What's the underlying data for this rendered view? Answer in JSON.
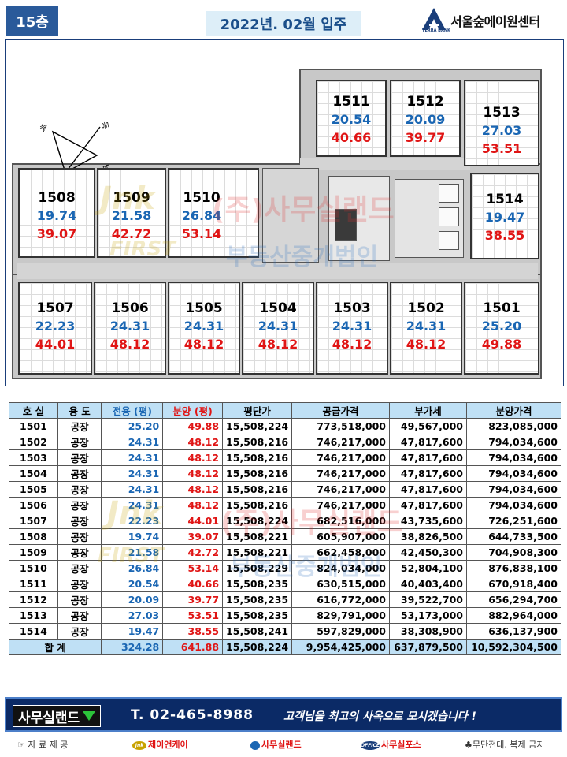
{
  "header": {
    "floor": "15층",
    "move_in": "2022년. 02월 입주",
    "brand_name": "서울숲에이원센터",
    "brand_logo_text": "TERRA BANK"
  },
  "compass": {
    "north": "북",
    "east": "동",
    "south": "남",
    "west": "서"
  },
  "watermarks": {
    "jnk": "Jnk",
    "first": "FIRST",
    "company": "(주)사무실랜드",
    "realty": "부동산중개법인"
  },
  "floor_plan": {
    "units": [
      {
        "unit": "1511",
        "exclusive": "20.54",
        "sale": "40.66"
      },
      {
        "unit": "1512",
        "exclusive": "20.09",
        "sale": "39.77"
      },
      {
        "unit": "1513",
        "exclusive": "27.03",
        "sale": "53.51"
      },
      {
        "unit": "1508",
        "exclusive": "19.74",
        "sale": "39.07"
      },
      {
        "unit": "1509",
        "exclusive": "21.58",
        "sale": "42.72"
      },
      {
        "unit": "1510",
        "exclusive": "26.84",
        "sale": "53.14"
      },
      {
        "unit": "1514",
        "exclusive": "19.47",
        "sale": "38.55"
      },
      {
        "unit": "1507",
        "exclusive": "22.23",
        "sale": "44.01"
      },
      {
        "unit": "1506",
        "exclusive": "24.31",
        "sale": "48.12"
      },
      {
        "unit": "1505",
        "exclusive": "24.31",
        "sale": "48.12"
      },
      {
        "unit": "1504",
        "exclusive": "24.31",
        "sale": "48.12"
      },
      {
        "unit": "1503",
        "exclusive": "24.31",
        "sale": "48.12"
      },
      {
        "unit": "1502",
        "exclusive": "24.31",
        "sale": "48.12"
      },
      {
        "unit": "1501",
        "exclusive": "25.20",
        "sale": "49.88"
      }
    ]
  },
  "table": {
    "headers": [
      "호 실",
      "용 도",
      "전용 (평)",
      "분양 (평)",
      "평단가",
      "공급가격",
      "부가세",
      "분양가격"
    ],
    "rows": [
      [
        "1501",
        "공장",
        "25.20",
        "49.88",
        "15,508,224",
        "773,518,000",
        "49,567,000",
        "823,085,000"
      ],
      [
        "1502",
        "공장",
        "24.31",
        "48.12",
        "15,508,216",
        "746,217,000",
        "47,817,600",
        "794,034,600"
      ],
      [
        "1503",
        "공장",
        "24.31",
        "48.12",
        "15,508,216",
        "746,217,000",
        "47,817,600",
        "794,034,600"
      ],
      [
        "1504",
        "공장",
        "24.31",
        "48.12",
        "15,508,216",
        "746,217,000",
        "47,817,600",
        "794,034,600"
      ],
      [
        "1505",
        "공장",
        "24.31",
        "48.12",
        "15,508,216",
        "746,217,000",
        "47,817,600",
        "794,034,600"
      ],
      [
        "1506",
        "공장",
        "24.31",
        "48.12",
        "15,508,216",
        "746,217,000",
        "47,817,600",
        "794,034,600"
      ],
      [
        "1507",
        "공장",
        "22.23",
        "44.01",
        "15,508,224",
        "682,516,000",
        "43,735,600",
        "726,251,600"
      ],
      [
        "1508",
        "공장",
        "19.74",
        "39.07",
        "15,508,221",
        "605,907,000",
        "38,826,500",
        "644,733,500"
      ],
      [
        "1509",
        "공장",
        "21.58",
        "42.72",
        "15,508,221",
        "662,458,000",
        "42,450,300",
        "704,908,300"
      ],
      [
        "1510",
        "공장",
        "26.84",
        "53.14",
        "15,508,229",
        "824,034,000",
        "52,804,100",
        "876,838,100"
      ],
      [
        "1511",
        "공장",
        "20.54",
        "40.66",
        "15,508,235",
        "630,515,000",
        "40,403,400",
        "670,918,400"
      ],
      [
        "1512",
        "공장",
        "20.09",
        "39.77",
        "15,508,235",
        "616,772,000",
        "39,522,700",
        "656,294,700"
      ],
      [
        "1513",
        "공장",
        "27.03",
        "53.51",
        "15,508,235",
        "829,791,000",
        "53,173,000",
        "882,964,000"
      ],
      [
        "1514",
        "공장",
        "19.47",
        "38.55",
        "15,508,241",
        "597,829,000",
        "38,308,900",
        "636,137,900"
      ]
    ],
    "total": {
      "label": "합      계",
      "exclusive": "324.28",
      "sale": "641.88",
      "unit_price": "15,508,224",
      "supply": "9,954,425,000",
      "vat": "637,879,500",
      "total_price": "10,592,304,500"
    }
  },
  "footer": {
    "brand": "사무실랜드",
    "phone": "T. 02-465-8988",
    "slogan": "고객님을 최고의 사옥으로 모시겠습니다 !"
  },
  "credits": {
    "source": "☞ 자 료 제 공",
    "jnk_icon": "Jnk",
    "jnk": "제이앤케이",
    "land": "사무실랜드",
    "pos_icon": "OFFICE",
    "pos": "사무실포스",
    "notice": "♣무단전대, 복제 금지"
  },
  "colors": {
    "header_badge": "#2a5a9a",
    "move_in_bg": "#ddeef8",
    "exclusive_blue": "#1a66b3",
    "sale_red": "#e01515",
    "table_header_bg": "#bfe0f5",
    "footer_bg": "#0b2a66"
  }
}
